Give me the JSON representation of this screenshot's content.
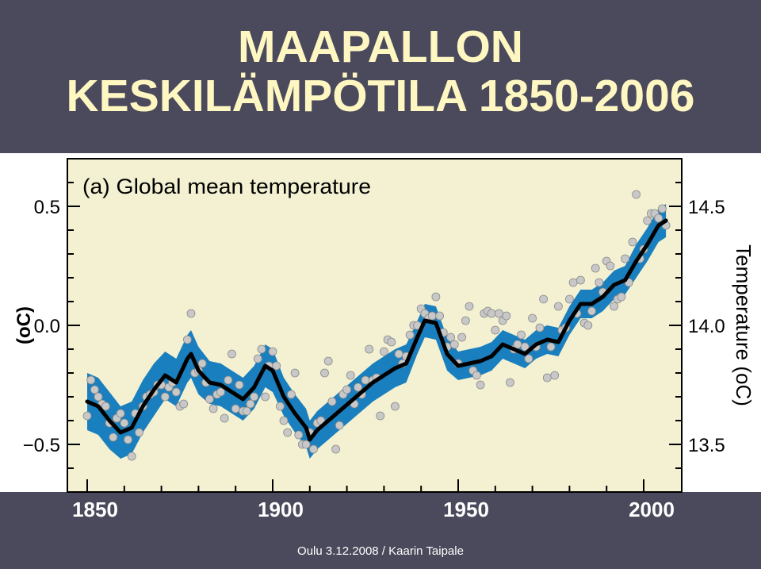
{
  "slide": {
    "title_line1": "MAAPALLON",
    "title_line2": "KESKILÄMPÖTILA 1850-2006",
    "footer": "Oulu 3.12.2008 / Kaarin Taipale",
    "band_color": "#4a4a5c",
    "title_color": "#fff7c2"
  },
  "chart_data": {
    "type": "line",
    "title": "(a) Global mean temperature",
    "xlabel": "",
    "ylabel": "(oC)",
    "ylabel_right": "Temperature (oC)",
    "xlim": [
      1845,
      2010
    ],
    "ylim": [
      -0.7,
      0.7
    ],
    "ylim_right": [
      13.3,
      14.7
    ],
    "x_ticks": [
      1850,
      1900,
      1950,
      2000
    ],
    "y_ticks_left": [
      "0.5",
      "0.0",
      "−0.5"
    ],
    "y_ticks_left_values": [
      0.5,
      0.0,
      -0.5
    ],
    "y_ticks_right": [
      "14.5",
      "14.0",
      "13.5"
    ],
    "y_ticks_right_values": [
      0.5,
      0.0,
      -0.5
    ],
    "grid": false,
    "colors": {
      "band": "#1a7fbe",
      "line": "#000000",
      "points": "#c8c8c8",
      "plot_bg": "#f3f1d2"
    },
    "series": [
      {
        "kind": "smoothed",
        "x": [
          1850,
          1853,
          1856,
          1859,
          1862,
          1865,
          1868,
          1871,
          1874,
          1877,
          1878,
          1880,
          1883,
          1886,
          1889,
          1892,
          1895,
          1898,
          1900,
          1903,
          1906,
          1909,
          1910,
          1912,
          1915,
          1918,
          1921,
          1924,
          1927,
          1930,
          1933,
          1936,
          1939,
          1941,
          1944,
          1947,
          1950,
          1953,
          1956,
          1959,
          1962,
          1965,
          1968,
          1971,
          1974,
          1977,
          1980,
          1983,
          1986,
          1989,
          1992,
          1995,
          1998,
          2001,
          2004,
          2006
        ],
        "y": [
          -0.32,
          -0.34,
          -0.4,
          -0.45,
          -0.43,
          -0.34,
          -0.27,
          -0.21,
          -0.24,
          -0.14,
          -0.12,
          -0.19,
          -0.24,
          -0.25,
          -0.28,
          -0.31,
          -0.26,
          -0.17,
          -0.19,
          -0.3,
          -0.37,
          -0.43,
          -0.48,
          -0.44,
          -0.4,
          -0.36,
          -0.32,
          -0.28,
          -0.24,
          -0.21,
          -0.18,
          -0.16,
          -0.05,
          0.02,
          0.01,
          -0.12,
          -0.17,
          -0.16,
          -0.15,
          -0.13,
          -0.08,
          -0.1,
          -0.12,
          -0.08,
          -0.06,
          -0.07,
          0.02,
          0.09,
          0.09,
          0.12,
          0.17,
          0.19,
          0.27,
          0.34,
          0.42,
          0.44
        ],
        "lower": [
          -0.44,
          -0.46,
          -0.52,
          -0.56,
          -0.54,
          -0.45,
          -0.38,
          -0.31,
          -0.34,
          -0.24,
          -0.22,
          -0.29,
          -0.33,
          -0.34,
          -0.37,
          -0.4,
          -0.35,
          -0.26,
          -0.28,
          -0.38,
          -0.45,
          -0.51,
          -0.56,
          -0.52,
          -0.48,
          -0.44,
          -0.4,
          -0.36,
          -0.32,
          -0.29,
          -0.26,
          -0.24,
          -0.12,
          -0.05,
          -0.06,
          -0.19,
          -0.23,
          -0.22,
          -0.21,
          -0.19,
          -0.14,
          -0.16,
          -0.18,
          -0.14,
          -0.12,
          -0.13,
          -0.04,
          0.03,
          0.03,
          0.06,
          0.11,
          0.13,
          0.2,
          0.27,
          0.35,
          0.37
        ],
        "upper": [
          -0.2,
          -0.22,
          -0.28,
          -0.34,
          -0.32,
          -0.23,
          -0.16,
          -0.11,
          -0.14,
          -0.04,
          -0.02,
          -0.09,
          -0.15,
          -0.16,
          -0.19,
          -0.22,
          -0.17,
          -0.08,
          -0.1,
          -0.22,
          -0.29,
          -0.35,
          -0.4,
          -0.36,
          -0.32,
          -0.28,
          -0.24,
          -0.2,
          -0.16,
          -0.13,
          -0.1,
          -0.08,
          0.02,
          0.09,
          0.08,
          -0.05,
          -0.11,
          -0.1,
          -0.09,
          -0.07,
          -0.02,
          -0.04,
          -0.06,
          -0.02,
          0.0,
          -0.01,
          0.08,
          0.15,
          0.15,
          0.18,
          0.23,
          0.25,
          0.34,
          0.41,
          0.49,
          0.51
        ]
      },
      {
        "kind": "annual",
        "x": [
          1850,
          1851,
          1852,
          1853,
          1854,
          1855,
          1856,
          1857,
          1858,
          1859,
          1860,
          1861,
          1862,
          1863,
          1864,
          1865,
          1866,
          1867,
          1868,
          1869,
          1870,
          1871,
          1872,
          1873,
          1874,
          1875,
          1876,
          1877,
          1878,
          1879,
          1880,
          1881,
          1882,
          1883,
          1884,
          1885,
          1886,
          1887,
          1888,
          1889,
          1890,
          1891,
          1892,
          1893,
          1894,
          1895,
          1896,
          1897,
          1898,
          1899,
          1900,
          1901,
          1902,
          1903,
          1904,
          1905,
          1906,
          1907,
          1908,
          1909,
          1910,
          1911,
          1912,
          1913,
          1914,
          1915,
          1916,
          1917,
          1918,
          1919,
          1920,
          1921,
          1922,
          1923,
          1924,
          1925,
          1926,
          1927,
          1928,
          1929,
          1930,
          1931,
          1932,
          1933,
          1934,
          1935,
          1936,
          1937,
          1938,
          1939,
          1940,
          1941,
          1942,
          1943,
          1944,
          1945,
          1946,
          1947,
          1948,
          1949,
          1950,
          1951,
          1952,
          1953,
          1954,
          1955,
          1956,
          1957,
          1958,
          1959,
          1960,
          1961,
          1962,
          1963,
          1964,
          1965,
          1966,
          1967,
          1968,
          1969,
          1970,
          1971,
          1972,
          1973,
          1974,
          1975,
          1976,
          1977,
          1978,
          1979,
          1980,
          1981,
          1982,
          1983,
          1984,
          1985,
          1986,
          1987,
          1988,
          1989,
          1990,
          1991,
          1992,
          1993,
          1994,
          1995,
          1996,
          1997,
          1998,
          1999,
          2000,
          2001,
          2002,
          2003,
          2004,
          2005,
          2006
        ],
        "y": [
          -0.38,
          -0.23,
          -0.27,
          -0.3,
          -0.33,
          -0.34,
          -0.41,
          -0.47,
          -0.39,
          -0.37,
          -0.41,
          -0.48,
          -0.55,
          -0.37,
          -0.45,
          -0.34,
          -0.3,
          -0.29,
          -0.28,
          -0.25,
          -0.25,
          -0.3,
          -0.26,
          -0.24,
          -0.28,
          -0.34,
          -0.33,
          -0.06,
          0.05,
          -0.2,
          -0.19,
          -0.16,
          -0.24,
          -0.31,
          -0.35,
          -0.29,
          -0.28,
          -0.39,
          -0.23,
          -0.12,
          -0.35,
          -0.25,
          -0.36,
          -0.36,
          -0.33,
          -0.3,
          -0.14,
          -0.1,
          -0.3,
          -0.17,
          -0.11,
          -0.17,
          -0.34,
          -0.4,
          -0.45,
          -0.29,
          -0.2,
          -0.46,
          -0.5,
          -0.5,
          -0.45,
          -0.52,
          -0.41,
          -0.4,
          -0.2,
          -0.15,
          -0.32,
          -0.52,
          -0.42,
          -0.29,
          -0.27,
          -0.21,
          -0.33,
          -0.26,
          -0.29,
          -0.23,
          -0.1,
          -0.23,
          -0.22,
          -0.38,
          -0.11,
          -0.06,
          -0.07,
          -0.34,
          -0.12,
          -0.16,
          -0.13,
          -0.04,
          0.0,
          0.0,
          0.07,
          0.05,
          0.03,
          0.04,
          0.12,
          0.04,
          -0.03,
          -0.09,
          -0.05,
          -0.08,
          -0.16,
          -0.05,
          0.02,
          0.08,
          -0.19,
          -0.21,
          -0.25,
          0.05,
          0.06,
          0.05,
          -0.02,
          0.05,
          0.02,
          0.04,
          -0.24,
          -0.1,
          -0.08,
          -0.04,
          -0.09,
          -0.14,
          0.03,
          -0.09,
          -0.01,
          0.11,
          -0.22,
          -0.09,
          -0.21,
          0.08,
          -0.02,
          -0.01,
          0.11,
          0.18,
          0.05,
          0.19,
          0.01,
          0.0,
          0.06,
          0.24,
          0.18,
          0.14,
          0.27,
          0.25,
          0.08,
          0.11,
          0.12,
          0.28,
          0.18,
          0.35,
          0.55,
          0.28,
          0.32,
          0.44,
          0.47,
          0.47,
          0.45,
          0.49,
          0.42
        ]
      }
    ]
  }
}
